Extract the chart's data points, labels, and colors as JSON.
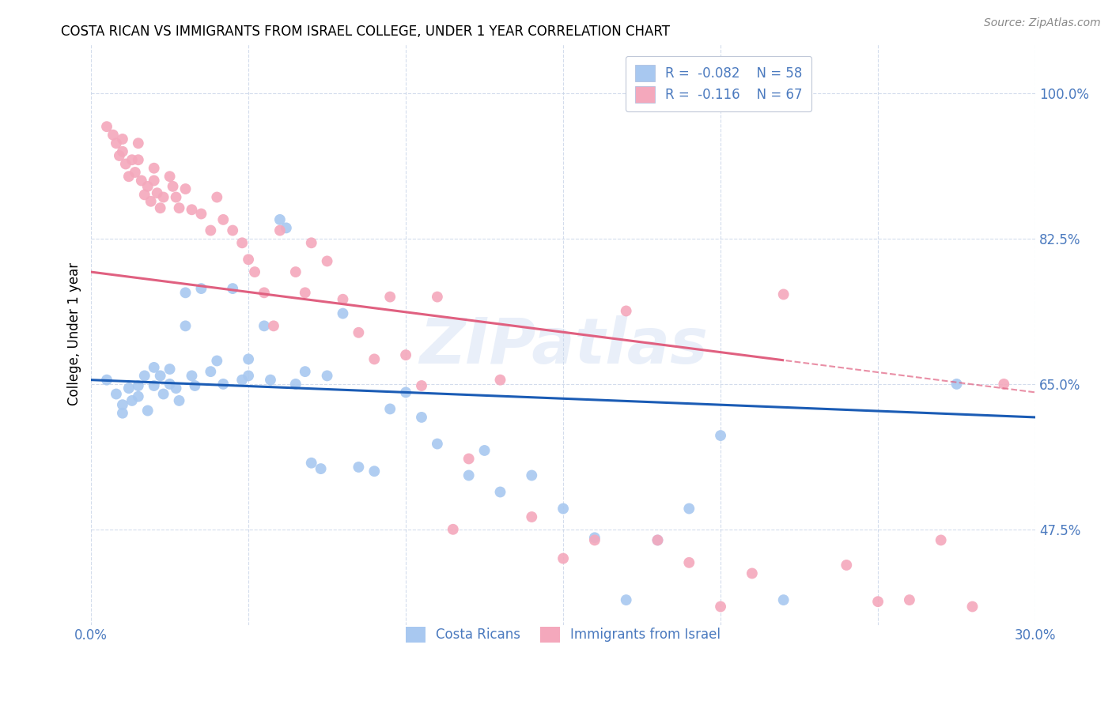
{
  "title": "COSTA RICAN VS IMMIGRANTS FROM ISRAEL COLLEGE, UNDER 1 YEAR CORRELATION CHART",
  "source": "Source: ZipAtlas.com",
  "ylabel": "College, Under 1 year",
  "yticks": [
    "47.5%",
    "65.0%",
    "82.5%",
    "100.0%"
  ],
  "ytick_vals": [
    0.475,
    0.65,
    0.825,
    1.0
  ],
  "xlim": [
    0.0,
    0.3
  ],
  "ylim": [
    0.36,
    1.06
  ],
  "r_blue": -0.082,
  "n_blue": 58,
  "r_pink": -0.116,
  "n_pink": 67,
  "legend_label_blue": "Costa Ricans",
  "legend_label_pink": "Immigrants from Israel",
  "blue_color": "#A8C8F0",
  "pink_color": "#F4A8BC",
  "blue_line_color": "#1B5CB5",
  "pink_line_color": "#E06080",
  "text_color": "#4B7ABF",
  "background_color": "#FFFFFF",
  "watermark": "ZIPatlas",
  "blue_x": [
    0.005,
    0.008,
    0.01,
    0.01,
    0.012,
    0.013,
    0.015,
    0.015,
    0.017,
    0.018,
    0.02,
    0.02,
    0.022,
    0.023,
    0.025,
    0.025,
    0.027,
    0.028,
    0.03,
    0.03,
    0.032,
    0.033,
    0.035,
    0.038,
    0.04,
    0.042,
    0.045,
    0.048,
    0.05,
    0.05,
    0.055,
    0.057,
    0.06,
    0.062,
    0.065,
    0.068,
    0.07,
    0.073,
    0.075,
    0.08,
    0.085,
    0.09,
    0.095,
    0.1,
    0.105,
    0.11,
    0.12,
    0.125,
    0.13,
    0.14,
    0.15,
    0.16,
    0.17,
    0.18,
    0.19,
    0.2,
    0.22,
    0.275
  ],
  "blue_y": [
    0.655,
    0.638,
    0.625,
    0.615,
    0.645,
    0.63,
    0.648,
    0.635,
    0.66,
    0.618,
    0.67,
    0.648,
    0.66,
    0.638,
    0.668,
    0.65,
    0.645,
    0.63,
    0.76,
    0.72,
    0.66,
    0.648,
    0.765,
    0.665,
    0.678,
    0.65,
    0.765,
    0.655,
    0.68,
    0.66,
    0.72,
    0.655,
    0.848,
    0.838,
    0.65,
    0.665,
    0.555,
    0.548,
    0.66,
    0.735,
    0.55,
    0.545,
    0.62,
    0.64,
    0.61,
    0.578,
    0.54,
    0.57,
    0.52,
    0.54,
    0.5,
    0.465,
    0.39,
    0.462,
    0.5,
    0.588,
    0.39,
    0.65
  ],
  "pink_x": [
    0.005,
    0.007,
    0.008,
    0.009,
    0.01,
    0.01,
    0.011,
    0.012,
    0.013,
    0.014,
    0.015,
    0.015,
    0.016,
    0.017,
    0.018,
    0.019,
    0.02,
    0.02,
    0.021,
    0.022,
    0.023,
    0.025,
    0.026,
    0.027,
    0.028,
    0.03,
    0.032,
    0.035,
    0.038,
    0.04,
    0.042,
    0.045,
    0.048,
    0.05,
    0.052,
    0.055,
    0.058,
    0.06,
    0.065,
    0.068,
    0.07,
    0.075,
    0.08,
    0.085,
    0.09,
    0.095,
    0.1,
    0.105,
    0.11,
    0.115,
    0.12,
    0.13,
    0.14,
    0.15,
    0.16,
    0.17,
    0.18,
    0.19,
    0.2,
    0.21,
    0.22,
    0.24,
    0.25,
    0.26,
    0.27,
    0.28,
    0.29
  ],
  "pink_y": [
    0.96,
    0.95,
    0.94,
    0.925,
    0.945,
    0.93,
    0.915,
    0.9,
    0.92,
    0.905,
    0.94,
    0.92,
    0.895,
    0.878,
    0.888,
    0.87,
    0.91,
    0.895,
    0.88,
    0.862,
    0.875,
    0.9,
    0.888,
    0.875,
    0.862,
    0.885,
    0.86,
    0.855,
    0.835,
    0.875,
    0.848,
    0.835,
    0.82,
    0.8,
    0.785,
    0.76,
    0.72,
    0.835,
    0.785,
    0.76,
    0.82,
    0.798,
    0.752,
    0.712,
    0.68,
    0.755,
    0.685,
    0.648,
    0.755,
    0.475,
    0.56,
    0.655,
    0.49,
    0.44,
    0.462,
    0.738,
    0.462,
    0.435,
    0.382,
    0.422,
    0.758,
    0.432,
    0.388,
    0.39,
    0.462,
    0.382,
    0.65
  ]
}
